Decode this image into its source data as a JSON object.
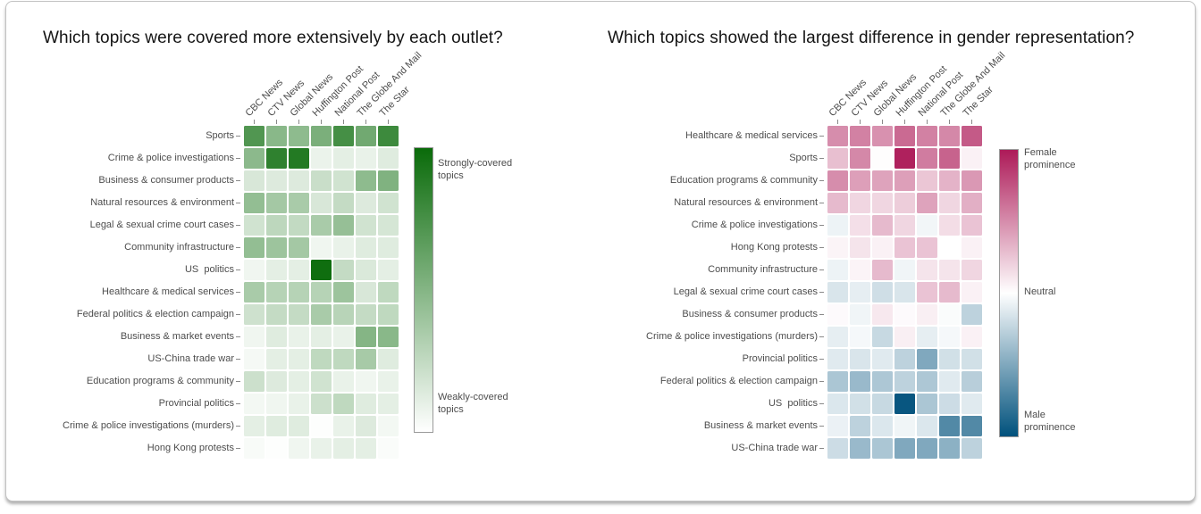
{
  "chart_data": [
    {
      "type": "heatmap",
      "title": "Which topics were covered more extensively by each outlet?",
      "columns": [
        "CBC News",
        "CTV News",
        "Global News",
        "Huffington Post",
        "National Post",
        "The Globe And Mail",
        "The Star"
      ],
      "rows": [
        "Sports",
        "Crime & police investigations",
        "Business & consumer products",
        "Natural resources & environment",
        "Legal & sexual crime court cases",
        "Community infrastructure",
        "US  politics",
        "Healthcare & medical services",
        "Federal politics & election campaign",
        "Business & market events",
        "US-China trade war",
        "Education programs & community",
        "Provincial politics",
        "Crime & police investigations (murders)",
        "Hong Kong protests"
      ],
      "values": [
        [
          0.71,
          0.48,
          0.46,
          0.54,
          0.76,
          0.58,
          0.79
        ],
        [
          0.47,
          0.85,
          0.9,
          0.08,
          0.11,
          0.09,
          0.13
        ],
        [
          0.16,
          0.14,
          0.14,
          0.22,
          0.19,
          0.46,
          0.52
        ],
        [
          0.44,
          0.37,
          0.35,
          0.16,
          0.24,
          0.14,
          0.19
        ],
        [
          0.19,
          0.27,
          0.25,
          0.35,
          0.43,
          0.19,
          0.17
        ],
        [
          0.44,
          0.4,
          0.37,
          0.06,
          0.09,
          0.13,
          0.13
        ],
        [
          0.06,
          0.11,
          0.11,
          0.98,
          0.24,
          0.15,
          0.11
        ],
        [
          0.35,
          0.3,
          0.3,
          0.3,
          0.4,
          0.16,
          0.26
        ],
        [
          0.2,
          0.24,
          0.24,
          0.35,
          0.29,
          0.24,
          0.26
        ],
        [
          0.06,
          0.13,
          0.09,
          0.11,
          0.09,
          0.5,
          0.48
        ],
        [
          0.04,
          0.11,
          0.11,
          0.26,
          0.26,
          0.36,
          0.13
        ],
        [
          0.21,
          0.14,
          0.11,
          0.19,
          0.09,
          0.06,
          0.09
        ],
        [
          0.05,
          0.06,
          0.09,
          0.21,
          0.26,
          0.13,
          0.11
        ],
        [
          0.11,
          0.13,
          0.13,
          0.01,
          0.09,
          0.14,
          0.05
        ],
        [
          0.03,
          0.01,
          0.06,
          0.09,
          0.11,
          0.11,
          0.02
        ]
      ],
      "value_range": [
        0,
        1
      ],
      "colormap": {
        "low": "#ffffff",
        "high": "#0a6b0a"
      },
      "colorbar": {
        "top_label": "Strongly-covered\ntopics",
        "bottom_label": "Weakly-covered\ntopics"
      }
    },
    {
      "type": "heatmap",
      "title": "Which topics showed the largest difference in gender representation?",
      "columns": [
        "CBC News",
        "CTV News",
        "Global News",
        "Huffington Post",
        "National Post",
        "The Globe And Mail",
        "The Star"
      ],
      "rows": [
        "Healthcare & medical services",
        "Sports",
        "Education programs & community",
        "Natural resources & environment",
        "Crime & police investigations",
        "Hong Kong protests",
        "Community infrastructure",
        "Legal & sexual crime court cases",
        "Business & consumer products",
        "Crime & police investigations (murders)",
        "Provincial politics",
        "Federal politics & election campaign",
        "US  politics",
        "Business & market events",
        "US-China trade war"
      ],
      "values": [
        [
          0.5,
          0.55,
          0.48,
          0.65,
          0.55,
          0.52,
          0.72
        ],
        [
          0.28,
          0.52,
          0.01,
          0.97,
          0.57,
          0.68,
          0.06
        ],
        [
          0.5,
          0.42,
          0.4,
          0.42,
          0.25,
          0.33,
          0.45
        ],
        [
          0.3,
          0.18,
          0.18,
          0.22,
          0.4,
          0.18,
          0.35
        ],
        [
          -0.07,
          0.14,
          0.3,
          0.18,
          -0.05,
          0.15,
          0.26
        ],
        [
          0.05,
          0.12,
          0.06,
          0.26,
          0.26,
          0.0,
          0.06
        ],
        [
          -0.07,
          0.05,
          0.3,
          -0.06,
          0.12,
          0.12,
          0.18
        ],
        [
          -0.15,
          -0.1,
          -0.19,
          -0.15,
          0.26,
          0.3,
          0.06
        ],
        [
          0.02,
          -0.06,
          0.1,
          0.02,
          0.07,
          -0.02,
          -0.26
        ],
        [
          -0.1,
          -0.04,
          -0.22,
          0.07,
          -0.1,
          -0.04,
          0.06
        ],
        [
          -0.12,
          -0.15,
          -0.12,
          -0.26,
          -0.5,
          -0.18,
          -0.18
        ],
        [
          -0.33,
          -0.4,
          -0.32,
          -0.26,
          -0.32,
          -0.12,
          -0.28
        ],
        [
          -0.14,
          -0.18,
          -0.22,
          -0.97,
          -0.33,
          -0.2,
          -0.12
        ],
        [
          -0.08,
          -0.26,
          -0.14,
          -0.06,
          -0.14,
          -0.68,
          -0.68
        ],
        [
          -0.2,
          -0.4,
          -0.33,
          -0.5,
          -0.5,
          -0.45,
          -0.26
        ]
      ],
      "value_range": [
        -1,
        1
      ],
      "colormap": {
        "low": "#00517c",
        "mid": "#ffffff",
        "high": "#ad1a58"
      },
      "colorbar": {
        "top_label": "Female\nprominence",
        "mid_label": "Neutral",
        "bottom_label": "Male\nprominence"
      }
    }
  ]
}
